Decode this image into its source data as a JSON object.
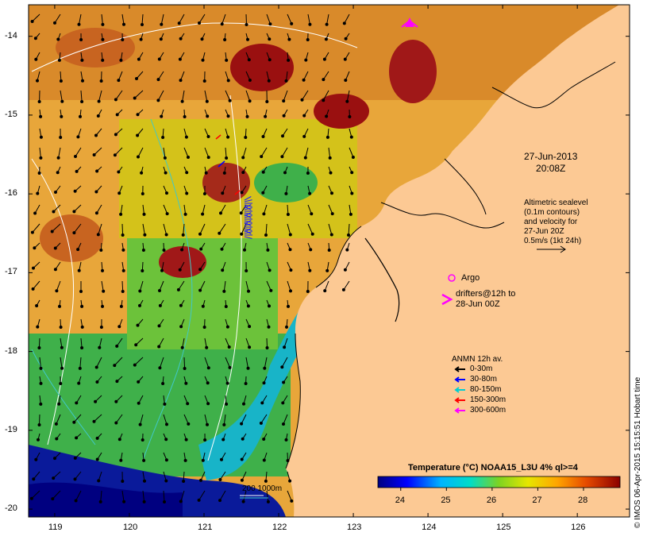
{
  "map": {
    "lon_range": [
      118.65,
      126.7
    ],
    "lat_range": [
      -20.1,
      -13.6
    ],
    "lon_ticks": [
      "119",
      "120",
      "121",
      "122",
      "123",
      "124",
      "125",
      "126"
    ],
    "lat_ticks": [
      "-14",
      "-15",
      "-16",
      "-17",
      "-18",
      "-19",
      "-20"
    ]
  },
  "annotations": {
    "date": "27-Jun-2013",
    "time": "20:08Z",
    "altimetry_lines": [
      "Altimetric sealevel",
      "(0.1m contours)",
      "and velocity for",
      "27-Jun 20Z",
      "0.5m/s (1kt 24h)"
    ],
    "argo_label": "Argo",
    "drifters_lines": [
      "drifters@12h to",
      "28-Jun 00Z"
    ],
    "depth_contours_label": "200  1000m"
  },
  "legend": {
    "title": "ANMN 12h av.",
    "items": [
      {
        "label": "0-30m",
        "color": "#000000"
      },
      {
        "label": "30-80m",
        "color": "#0000ff"
      },
      {
        "label": "80-150m",
        "color": "#00ced1"
      },
      {
        "label": "150-300m",
        "color": "#ff0000"
      },
      {
        "label": "300-600m",
        "color": "#ff00ff"
      }
    ]
  },
  "colorbar": {
    "title": "Temperature (°C) NOAA15_L3U 4% ql>=4",
    "ticks": [
      "24",
      "25",
      "26",
      "27",
      "28"
    ],
    "value_range": [
      23.5,
      28.8
    ]
  },
  "credit": "© IMOS 06-Apr-2015 15:15:51 Hobart time",
  "colors": {
    "land": "#fcc994",
    "cold": "#000080",
    "warm": "#a00000",
    "argo": "#ff00ff",
    "contour": "#ffffff",
    "isobath_200": "#ffffff",
    "isobath_1000": "#40c8c8"
  }
}
